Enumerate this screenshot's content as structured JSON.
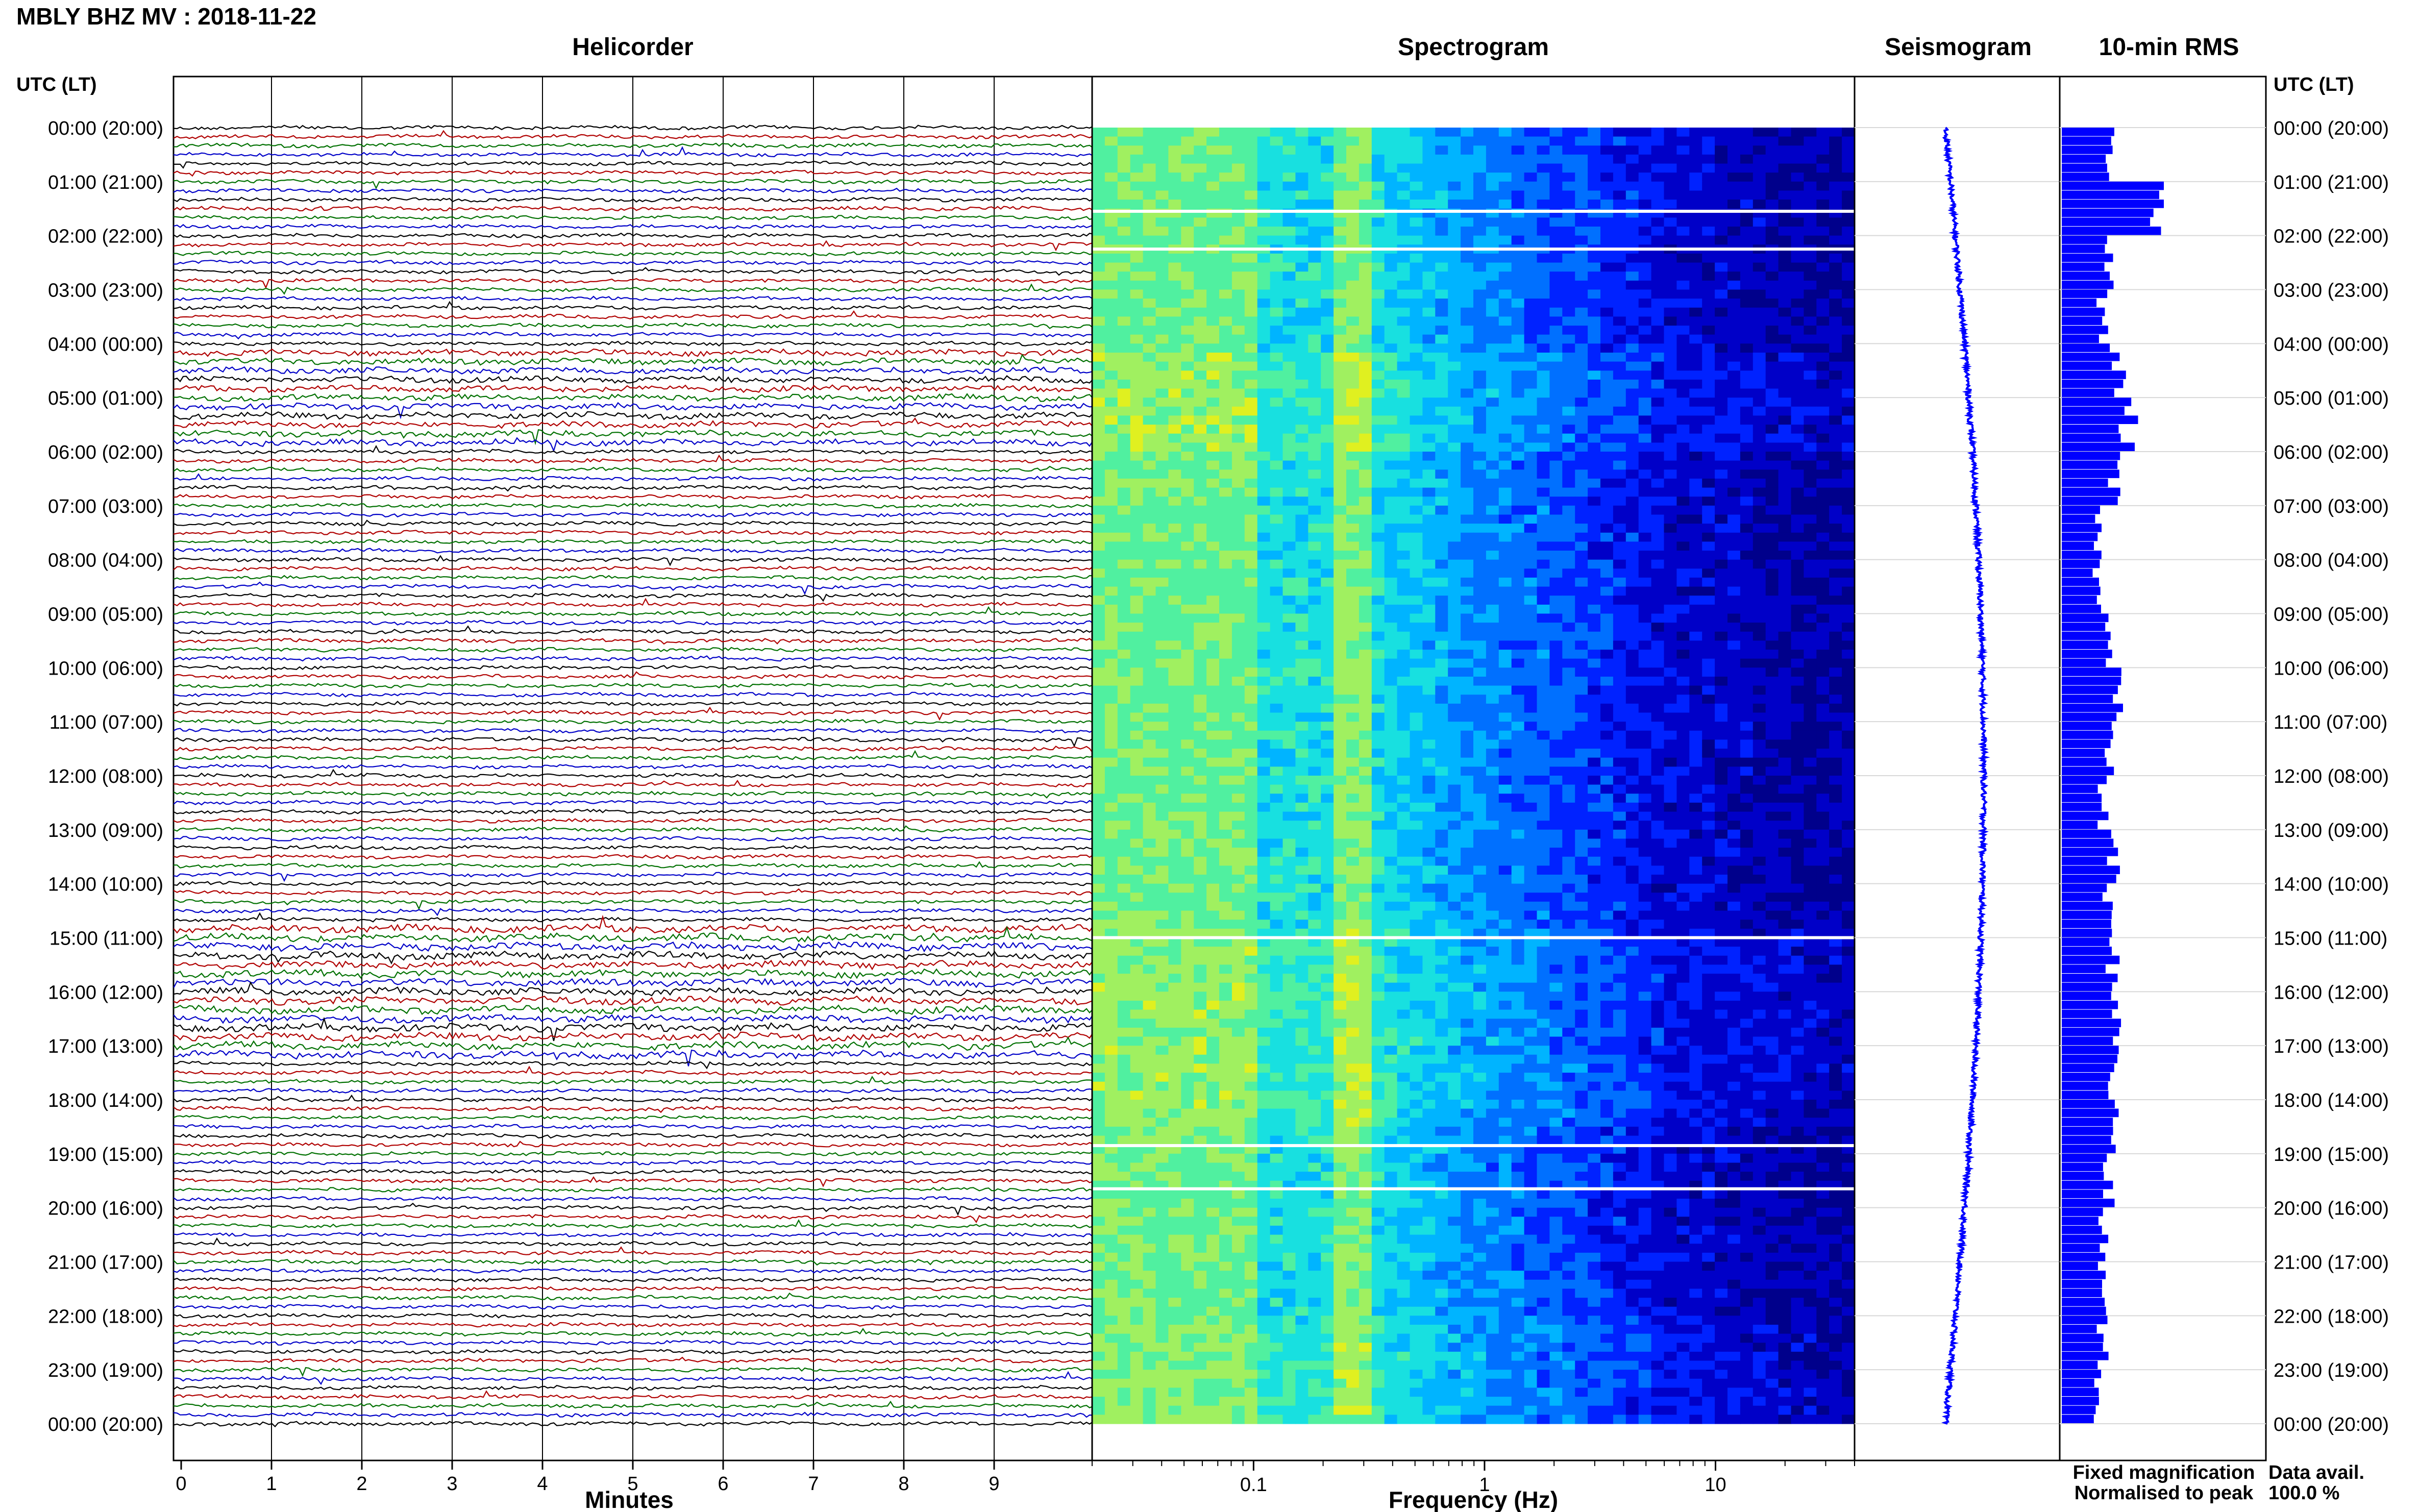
{
  "header": {
    "station_title": "MBLY BHZ MV : 2018-11-22",
    "utc_label_left": "UTC (LT)",
    "utc_label_right": "UTC (LT)"
  },
  "panels": {
    "helicorder": "Helicorder",
    "spectrogram": "Spectrogram",
    "seismogram": "Seismogram",
    "rms": "10-min RMS"
  },
  "legend": {
    "fixed": "Fixed magnification",
    "normalised": "Normalised to peak",
    "fixed_color": "#0000ff",
    "normalised_color": "#ff0000"
  },
  "availability": {
    "label": "Data avail.",
    "value": "100.0 %"
  },
  "chart_data": [
    {
      "type": "line",
      "panel": "helicorder",
      "xlabel": "Minutes",
      "x_ticks": [
        "0",
        "1",
        "2",
        "3",
        "4",
        "5",
        "6",
        "7",
        "8",
        "9"
      ],
      "xlim": [
        0,
        10
      ],
      "rows_per_hour": 6,
      "trace_colors": [
        "#000000",
        "#b00000",
        "#007000",
        "#0000c8"
      ],
      "hour_labels": [
        "00:00 (20:00)",
        "01:00 (21:00)",
        "02:00 (22:00)",
        "03:00 (23:00)",
        "04:00 (00:00)",
        "05:00 (01:00)",
        "06:00 (02:00)",
        "07:00 (03:00)",
        "08:00 (04:00)",
        "09:00 (05:00)",
        "10:00 (06:00)",
        "11:00 (07:00)",
        "12:00 (08:00)",
        "13:00 (09:00)",
        "14:00 (10:00)",
        "15:00 (11:00)",
        "16:00 (12:00)",
        "17:00 (13:00)",
        "18:00 (14:00)",
        "19:00 (15:00)",
        "20:00 (16:00)",
        "21:00 (17:00)",
        "22:00 (18:00)",
        "23:00 (19:00)",
        "00:00 (20:00)"
      ]
    },
    {
      "type": "heatmap",
      "panel": "spectrogram",
      "xlabel": "Frequency (Hz)",
      "x_scale": "log",
      "xlim": [
        0.02,
        40
      ],
      "x_tick_labels": [
        "0.1",
        "1",
        "10"
      ],
      "x_tick_values": [
        0.1,
        1,
        10
      ],
      "gap_hours": [
        1.55,
        2.25,
        15.0,
        18.85,
        19.65
      ]
    },
    {
      "type": "line",
      "panel": "seismogram",
      "ylim_hours": [
        0,
        24
      ]
    },
    {
      "type": "bar",
      "panel": "rms",
      "orientation": "horizontal",
      "interval_minutes": 10,
      "values_hourly": [
        0.45,
        1.0,
        0.45,
        0.4,
        0.55,
        0.65,
        0.5,
        0.35,
        0.35,
        0.5,
        0.55,
        0.45,
        0.4,
        0.5,
        0.45,
        0.5,
        0.55,
        0.5,
        0.5,
        0.45,
        0.4,
        0.4,
        0.4,
        0.35
      ],
      "peak_row": 6,
      "peak_value": 1.0
    }
  ]
}
